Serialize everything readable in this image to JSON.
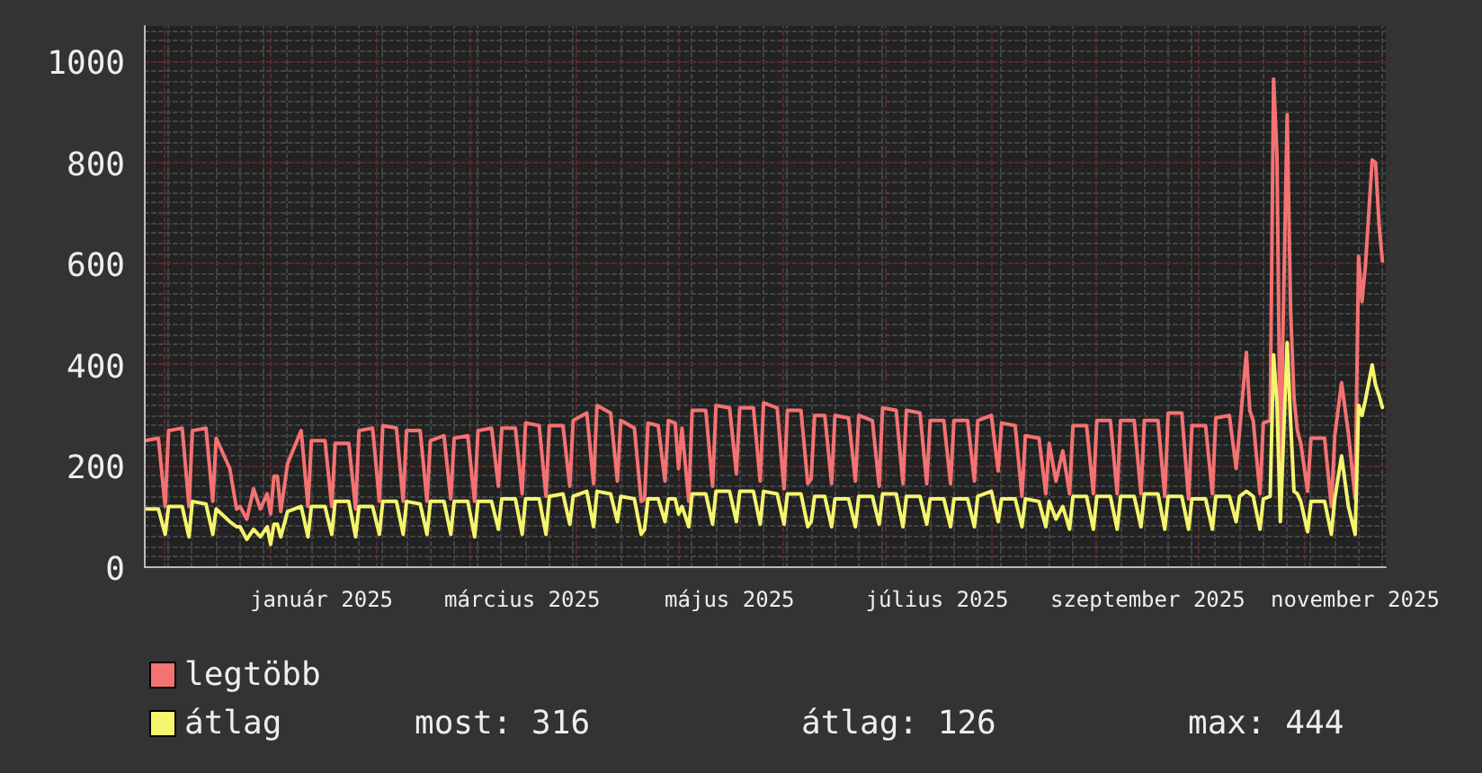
{
  "chart_data": {
    "type": "line",
    "x": [
      "2024-11-25",
      "2024-11-29",
      "2024-12-01",
      "2024-12-02",
      "2024-12-06",
      "2024-12-08",
      "2024-12-09",
      "2024-12-13",
      "2024-12-15",
      "2024-12-16",
      "2024-12-20",
      "2024-12-22",
      "2024-12-23",
      "2024-12-25",
      "2024-12-27",
      "2024-12-29",
      "2024-12-31",
      "2025-01-01",
      "2025-01-02",
      "2025-01-03",
      "2025-01-04",
      "2025-01-06",
      "2025-01-10",
      "2025-01-12",
      "2025-01-13",
      "2025-01-17",
      "2025-01-19",
      "2025-01-20",
      "2025-01-24",
      "2025-01-26",
      "2025-01-27",
      "2025-01-31",
      "2025-02-02",
      "2025-02-03",
      "2025-02-07",
      "2025-02-09",
      "2025-02-10",
      "2025-02-14",
      "2025-02-16",
      "2025-02-17",
      "2025-02-21",
      "2025-02-23",
      "2025-02-24",
      "2025-02-28",
      "2025-03-02",
      "2025-03-03",
      "2025-03-07",
      "2025-03-09",
      "2025-03-10",
      "2025-03-14",
      "2025-03-16",
      "2025-03-17",
      "2025-03-21",
      "2025-03-23",
      "2025-03-24",
      "2025-03-28",
      "2025-03-30",
      "2025-03-31",
      "2025-04-04",
      "2025-04-06",
      "2025-04-07",
      "2025-04-11",
      "2025-04-13",
      "2025-04-14",
      "2025-04-18",
      "2025-04-20",
      "2025-04-21",
      "2025-04-22",
      "2025-04-25",
      "2025-04-27",
      "2025-04-28",
      "2025-04-30",
      "2025-05-01",
      "2025-05-02",
      "2025-05-04",
      "2025-05-05",
      "2025-05-09",
      "2025-05-11",
      "2025-05-12",
      "2025-05-16",
      "2025-05-18",
      "2025-05-19",
      "2025-05-23",
      "2025-05-25",
      "2025-05-26",
      "2025-05-30",
      "2025-06-01",
      "2025-06-02",
      "2025-06-06",
      "2025-06-08",
      "2025-06-09",
      "2025-06-10",
      "2025-06-13",
      "2025-06-15",
      "2025-06-16",
      "2025-06-20",
      "2025-06-22",
      "2025-06-23",
      "2025-06-27",
      "2025-06-29",
      "2025-06-30",
      "2025-07-04",
      "2025-07-06",
      "2025-07-07",
      "2025-07-11",
      "2025-07-13",
      "2025-07-14",
      "2025-07-18",
      "2025-07-20",
      "2025-07-21",
      "2025-07-25",
      "2025-07-27",
      "2025-07-28",
      "2025-08-01",
      "2025-08-03",
      "2025-08-04",
      "2025-08-08",
      "2025-08-10",
      "2025-08-11",
      "2025-08-15",
      "2025-08-17",
      "2025-08-18",
      "2025-08-20",
      "2025-08-22",
      "2025-08-24",
      "2025-08-25",
      "2025-08-29",
      "2025-08-31",
      "2025-09-01",
      "2025-09-05",
      "2025-09-07",
      "2025-09-08",
      "2025-09-12",
      "2025-09-14",
      "2025-09-15",
      "2025-09-19",
      "2025-09-21",
      "2025-09-22",
      "2025-09-26",
      "2025-09-28",
      "2025-09-29",
      "2025-10-03",
      "2025-10-05",
      "2025-10-06",
      "2025-10-10",
      "2025-10-12",
      "2025-10-13",
      "2025-10-15",
      "2025-10-16",
      "2025-10-17",
      "2025-10-19",
      "2025-10-20",
      "2025-10-22",
      "2025-10-23",
      "2025-10-24",
      "2025-10-25",
      "2025-10-27",
      "2025-10-28",
      "2025-10-29",
      "2025-10-30",
      "2025-10-31",
      "2025-11-02",
      "2025-11-03",
      "2025-11-07",
      "2025-11-09",
      "2025-11-10",
      "2025-11-12",
      "2025-11-14",
      "2025-11-16",
      "2025-11-17",
      "2025-11-18",
      "2025-11-19",
      "2025-11-21",
      "2025-11-22",
      "2025-11-23",
      "2025-11-24"
    ],
    "series": [
      {
        "name": "legtöbb",
        "color": "#f47272",
        "values": [
          250,
          255,
          120,
          270,
          275,
          120,
          270,
          275,
          130,
          255,
          195,
          115,
          120,
          95,
          155,
          115,
          145,
          105,
          180,
          180,
          110,
          205,
          270,
          120,
          250,
          250,
          120,
          245,
          245,
          115,
          270,
          275,
          130,
          280,
          275,
          130,
          270,
          270,
          130,
          250,
          260,
          135,
          255,
          260,
          130,
          270,
          275,
          160,
          275,
          275,
          145,
          285,
          280,
          140,
          280,
          280,
          160,
          290,
          305,
          165,
          320,
          305,
          170,
          290,
          275,
          130,
          135,
          285,
          280,
          170,
          290,
          285,
          195,
          275,
          130,
          310,
          310,
          160,
          320,
          315,
          185,
          315,
          315,
          170,
          325,
          315,
          155,
          310,
          310,
          165,
          175,
          300,
          300,
          165,
          300,
          295,
          170,
          300,
          290,
          160,
          315,
          310,
          165,
          310,
          305,
          165,
          290,
          290,
          165,
          290,
          290,
          170,
          290,
          300,
          190,
          285,
          280,
          140,
          260,
          255,
          145,
          245,
          170,
          230,
          145,
          280,
          280,
          145,
          290,
          290,
          145,
          290,
          290,
          145,
          290,
          290,
          140,
          305,
          305,
          135,
          280,
          280,
          145,
          295,
          300,
          195,
          270,
          425,
          310,
          290,
          145,
          285,
          290,
          965,
          815,
          195,
          895,
          510,
          335,
          270,
          245,
          150,
          255,
          255,
          120,
          260,
          365,
          265,
          135,
          615,
          525,
          595,
          805,
          800,
          680,
          605
        ]
      },
      {
        "name": "átlag",
        "color": "#f5f56e",
        "values": [
          115,
          115,
          65,
          120,
          120,
          60,
          130,
          125,
          65,
          115,
          90,
          80,
          80,
          55,
          75,
          60,
          80,
          45,
          85,
          85,
          60,
          110,
          120,
          60,
          120,
          120,
          65,
          130,
          130,
          60,
          120,
          120,
          65,
          130,
          130,
          65,
          130,
          125,
          65,
          130,
          130,
          65,
          130,
          130,
          60,
          130,
          130,
          75,
          135,
          135,
          65,
          135,
          135,
          65,
          140,
          145,
          85,
          140,
          150,
          80,
          150,
          145,
          90,
          140,
          135,
          65,
          75,
          135,
          135,
          90,
          135,
          135,
          105,
          120,
          80,
          145,
          145,
          85,
          150,
          150,
          90,
          150,
          150,
          85,
          150,
          145,
          85,
          145,
          145,
          80,
          90,
          140,
          140,
          80,
          135,
          135,
          80,
          140,
          140,
          85,
          145,
          145,
          80,
          140,
          140,
          85,
          135,
          135,
          80,
          135,
          135,
          80,
          140,
          150,
          90,
          135,
          135,
          80,
          135,
          130,
          80,
          130,
          95,
          120,
          75,
          140,
          140,
          75,
          140,
          140,
          75,
          140,
          140,
          80,
          145,
          145,
          75,
          140,
          140,
          75,
          135,
          135,
          75,
          140,
          140,
          90,
          140,
          150,
          145,
          140,
          75,
          135,
          140,
          420,
          325,
          90,
          444,
          290,
          150,
          145,
          130,
          70,
          130,
          130,
          65,
          135,
          220,
          120,
          65,
          320,
          300,
          330,
          400,
          360,
          340,
          316
        ]
      }
    ],
    "xlim": [
      "2024-11-25",
      "2025-11-25"
    ],
    "xticks": [
      {
        "value": "2024-12-01",
        "label": null
      },
      {
        "value": "2025-01-01",
        "label": null
      },
      {
        "value": "2025-01-16",
        "label": "január 2025"
      },
      {
        "value": "2025-02-01",
        "label": null
      },
      {
        "value": "2025-03-01",
        "label": null
      },
      {
        "value": "2025-03-16",
        "label": "március 2025"
      },
      {
        "value": "2025-04-01",
        "label": null
      },
      {
        "value": "2025-05-01",
        "label": null
      },
      {
        "value": "2025-05-16",
        "label": "május 2025"
      },
      {
        "value": "2025-06-01",
        "label": null
      },
      {
        "value": "2025-07-01",
        "label": null
      },
      {
        "value": "2025-07-16",
        "label": "július 2025"
      },
      {
        "value": "2025-08-01",
        "label": null
      },
      {
        "value": "2025-09-01",
        "label": null
      },
      {
        "value": "2025-09-16",
        "label": "szeptember 2025"
      },
      {
        "value": "2025-10-01",
        "label": null
      },
      {
        "value": "2025-11-01",
        "label": null
      },
      {
        "value": "2025-11-16",
        "label": "november 2025"
      }
    ],
    "ylim": [
      0,
      1070
    ],
    "yticks": [
      0,
      200,
      400,
      600,
      800,
      1000
    ],
    "grid": true,
    "legend": "bottom left",
    "annotations": [
      "most: 316",
      "átlag: 126",
      "max: 444"
    ]
  }
}
